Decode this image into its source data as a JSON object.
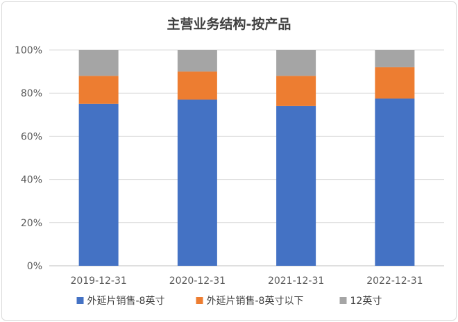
{
  "chart_data": {
    "type": "bar",
    "stacked": true,
    "title": "主营业务结构-按产品",
    "categories": [
      "2019-12-31",
      "2020-12-31",
      "2021-12-31",
      "2022-12-31"
    ],
    "series": [
      {
        "name": "外延片销售-8英寸",
        "values": [
          75,
          77,
          74,
          77.5
        ],
        "color": "#4472c4"
      },
      {
        "name": "外延片销售-8英寸以下",
        "values": [
          13,
          13,
          14,
          14.5
        ],
        "color": "#ed7d31"
      },
      {
        "name": "12英寸",
        "values": [
          12,
          10,
          12,
          8
        ],
        "color": "#a5a5a5"
      }
    ],
    "ylim": [
      0,
      100
    ],
    "yticks": [
      "0%",
      "20%",
      "40%",
      "60%",
      "80%",
      "100%"
    ],
    "grid": true,
    "legend_position": "bottom"
  }
}
